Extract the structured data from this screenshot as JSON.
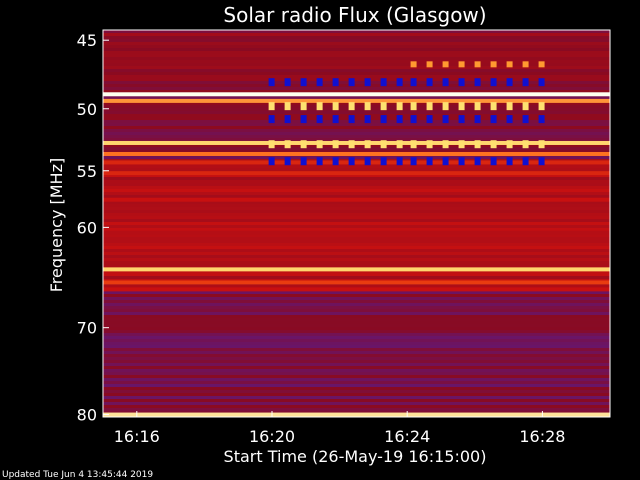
{
  "chart_data": {
    "type": "heatmap",
    "title": "Solar radio Flux (Glasgow)",
    "xlabel": "Start Time (26-May-19 16:15:00)",
    "ylabel": "Frequency [MHz]",
    "x_ticks": [
      "16:16",
      "16:20",
      "16:24",
      "16:28"
    ],
    "x_tick_minutes": [
      1,
      5,
      9,
      13
    ],
    "xlim_minutes": [
      0.0,
      15.0
    ],
    "y_ticks": [
      45,
      50,
      55,
      60,
      70,
      80
    ],
    "ylim": [
      44.3,
      80.3
    ],
    "y_scale": "log",
    "colormap": [
      "#1a0a6b",
      "#5a1a8a",
      "#8a0a20",
      "#c81010",
      "#ff5a10",
      "#ffd060",
      "#fffff0"
    ],
    "background_level": 0.3,
    "bands": [
      {
        "freq": 48.9,
        "level": 1.0
      },
      {
        "freq": 49.4,
        "level": 0.75
      },
      {
        "freq": 52.7,
        "level": 0.85
      },
      {
        "freq": 53.6,
        "level": 0.7
      },
      {
        "freq": 54.3,
        "level": 0.55
      },
      {
        "freq": 55.2,
        "level": 0.55
      },
      {
        "freq": 57.5,
        "level": 0.5
      },
      {
        "freq": 60.5,
        "level": 0.45
      },
      {
        "freq": 64.0,
        "level": 0.85
      },
      {
        "freq": 65.3,
        "level": 0.6
      },
      {
        "freq": 66.0,
        "level": 0.5
      },
      {
        "freq": 80.0,
        "level": 0.9
      }
    ],
    "bursts": [
      {
        "t_start": 4.9,
        "t_end": 9.1,
        "f_low": 48.0,
        "f_high": 55.0,
        "pattern": "striped"
      },
      {
        "t_start": 9.1,
        "t_end": 13.1,
        "f_low": 46.2,
        "f_high": 55.0,
        "pattern": "striped"
      }
    ]
  },
  "footer": {
    "updated": "Updated Tue Jun  4 13:45:44 2019"
  }
}
